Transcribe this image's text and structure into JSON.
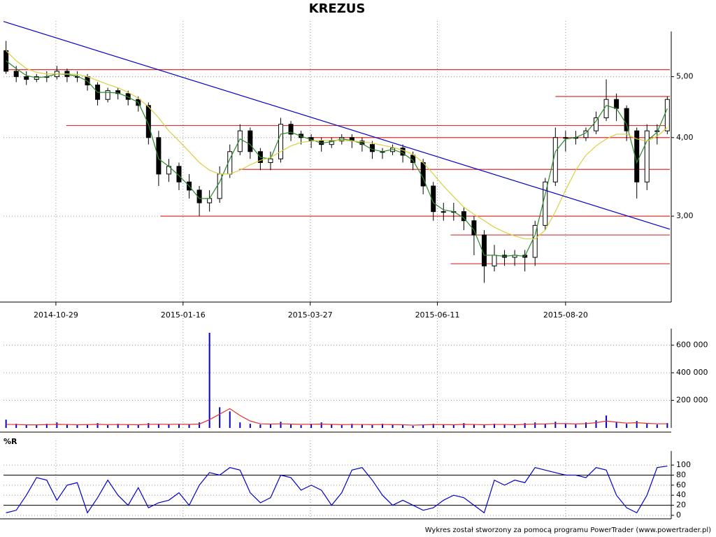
{
  "chart_data": [
    {
      "type": "candlestick",
      "title": "KREZUS",
      "log": true,
      "grid": true,
      "xlim": [
        0,
        262
      ],
      "xticks": [
        {
          "value": 20.6,
          "label": "2014-10-29"
        },
        {
          "value": 70.6,
          "label": "2015-01-16"
        },
        {
          "value": 120.6,
          "label": "2015-03-27"
        },
        {
          "value": 170.6,
          "label": "2015-06-11"
        },
        {
          "value": 221,
          "label": "2015-08-20"
        }
      ],
      "ylim": [
        2.19,
        5.9
      ],
      "yticks": [
        {
          "value": 3,
          "label": "3,00"
        },
        {
          "value": 4,
          "label": "4,00"
        },
        {
          "value": 5,
          "label": "5,00"
        }
      ],
      "x": [
        1,
        5,
        9,
        13,
        17,
        21,
        25,
        29,
        33,
        37,
        41,
        45,
        49,
        53,
        57,
        61,
        65,
        69,
        73,
        77,
        81,
        85,
        89,
        93,
        97,
        101,
        105,
        109,
        113,
        117,
        121,
        125,
        129,
        133,
        137,
        141,
        145,
        149,
        153,
        157,
        161,
        165,
        169,
        173,
        177,
        181,
        185,
        189,
        193,
        197,
        201,
        205,
        209,
        213,
        217,
        221,
        225,
        229,
        233,
        237,
        241,
        245,
        249,
        253,
        257,
        261
      ],
      "open": [
        5.5,
        5.1,
        5.0,
        4.95,
        5.0,
        5.0,
        5.1,
        5.0,
        5.0,
        4.85,
        4.6,
        4.75,
        4.7,
        4.6,
        4.5,
        4.0,
        3.5,
        3.6,
        3.4,
        3.3,
        3.15,
        3.2,
        3.5,
        3.8,
        4.1,
        3.8,
        3.65,
        3.7,
        4.2,
        4.05,
        4.0,
        3.95,
        3.9,
        3.95,
        4.0,
        3.95,
        3.9,
        3.8,
        3.8,
        3.85,
        3.75,
        3.65,
        3.35,
        3.05,
        3.05,
        3.05,
        2.95,
        2.8,
        2.5,
        2.6,
        2.58,
        2.6,
        2.58,
        2.9,
        3.4,
        4.0,
        4.0,
        4.0,
        4.1,
        4.3,
        4.6,
        4.45,
        4.1,
        3.4,
        4.1,
        4.1
      ],
      "high": [
        5.7,
        5.2,
        5.1,
        5.05,
        5.1,
        5.2,
        5.15,
        5.1,
        5.05,
        4.9,
        4.8,
        4.8,
        4.75,
        4.65,
        4.55,
        4.1,
        3.7,
        3.65,
        3.5,
        3.35,
        3.3,
        3.6,
        3.9,
        4.2,
        4.15,
        3.85,
        3.8,
        4.3,
        4.25,
        4.1,
        4.05,
        4.0,
        4.0,
        4.05,
        4.05,
        4.0,
        3.95,
        3.85,
        3.9,
        3.9,
        3.8,
        3.7,
        3.4,
        3.15,
        3.15,
        3.1,
        3.0,
        2.85,
        2.7,
        2.65,
        2.65,
        2.65,
        2.95,
        3.45,
        4.15,
        4.1,
        4.1,
        4.15,
        4.4,
        4.95,
        4.7,
        4.5,
        4.15,
        4.2,
        4.2,
        4.65
      ],
      "low": [
        5.05,
        4.9,
        4.85,
        4.9,
        4.9,
        4.95,
        4.9,
        4.9,
        4.75,
        4.5,
        4.55,
        4.6,
        4.5,
        4.4,
        3.9,
        3.35,
        3.4,
        3.3,
        3.2,
        3.0,
        3.05,
        3.15,
        3.45,
        3.75,
        3.7,
        3.55,
        3.55,
        3.65,
        3.95,
        3.9,
        3.85,
        3.8,
        3.85,
        3.9,
        3.85,
        3.8,
        3.7,
        3.7,
        3.75,
        3.65,
        3.55,
        3.25,
        2.95,
        2.95,
        2.95,
        2.85,
        2.6,
        2.35,
        2.45,
        2.5,
        2.5,
        2.45,
        2.5,
        2.85,
        3.35,
        3.8,
        3.9,
        3.95,
        4.05,
        4.25,
        4.25,
        3.95,
        3.2,
        3.3,
        3.9,
        4.05
      ],
      "close": [
        5.1,
        5.0,
        4.95,
        5.0,
        5.0,
        5.1,
        5.0,
        5.0,
        4.85,
        4.6,
        4.75,
        4.7,
        4.6,
        4.5,
        4.0,
        3.5,
        3.6,
        3.4,
        3.3,
        3.15,
        3.2,
        3.5,
        3.8,
        4.1,
        3.8,
        3.65,
        3.7,
        4.2,
        4.05,
        4.0,
        3.95,
        3.9,
        3.95,
        4.0,
        3.95,
        3.9,
        3.8,
        3.8,
        3.85,
        3.75,
        3.65,
        3.35,
        3.05,
        3.05,
        3.05,
        2.95,
        2.8,
        2.5,
        2.6,
        2.58,
        2.6,
        2.58,
        2.9,
        3.4,
        4.0,
        4.0,
        4.0,
        4.1,
        4.3,
        4.6,
        4.45,
        4.1,
        3.4,
        4.1,
        4.1,
        4.6
      ],
      "series": [
        {
          "color": "#2a8a2a",
          "values": [
            5.3,
            5.15,
            5.02,
            4.98,
            5.0,
            5.05,
            5.04,
            5.01,
            4.92,
            4.72,
            4.72,
            4.71,
            4.64,
            4.55,
            4.2,
            3.7,
            3.6,
            3.48,
            3.35,
            3.2,
            3.2,
            3.4,
            3.7,
            3.98,
            3.9,
            3.72,
            3.7,
            4.05,
            4.08,
            4.02,
            3.97,
            3.92,
            3.94,
            3.98,
            3.96,
            3.91,
            3.83,
            3.8,
            3.83,
            3.78,
            3.68,
            3.45,
            3.15,
            3.07,
            3.05,
            2.98,
            2.85,
            2.6,
            2.6,
            2.59,
            2.6,
            2.59,
            2.8,
            3.25,
            3.8,
            3.98,
            4.0,
            4.07,
            4.25,
            4.5,
            4.45,
            4.2,
            3.65,
            3.95,
            4.08,
            4.45
          ]
        },
        {
          "color": "#d8d040",
          "values": [
            5.5,
            5.3,
            5.15,
            5.08,
            5.05,
            5.05,
            5.05,
            5.04,
            5.0,
            4.93,
            4.86,
            4.8,
            4.72,
            4.62,
            4.48,
            4.3,
            4.1,
            3.95,
            3.8,
            3.65,
            3.55,
            3.5,
            3.5,
            3.55,
            3.62,
            3.68,
            3.72,
            3.8,
            3.88,
            3.93,
            3.95,
            3.96,
            3.96,
            3.96,
            3.95,
            3.94,
            3.92,
            3.89,
            3.86,
            3.82,
            3.76,
            3.65,
            3.5,
            3.35,
            3.22,
            3.1,
            3.02,
            2.95,
            2.88,
            2.83,
            2.79,
            2.76,
            2.76,
            2.85,
            3.05,
            3.3,
            3.55,
            3.75,
            3.88,
            3.98,
            4.05,
            4.05,
            3.98,
            3.95,
            4.02,
            4.15
          ]
        }
      ],
      "trend_line": {
        "color": "#0000cc",
        "x": [
          0,
          262
        ],
        "values": [
          6.12,
          2.86
        ]
      },
      "level_color": "#e03030",
      "levels": [
        {
          "level": 5.13,
          "x": [
            0,
            262
          ]
        },
        {
          "level": 4.65,
          "x": [
            217,
            262
          ]
        },
        {
          "level": 4.18,
          "x": [
            24.7,
            262
          ]
        },
        {
          "level": 4.0,
          "x": [
            119.5,
            262
          ]
        },
        {
          "level": 3.56,
          "x": [
            92.6,
            262
          ]
        },
        {
          "level": 3.0,
          "x": [
            61.8,
            262
          ]
        },
        {
          "level": 2.8,
          "x": [
            175.8,
            262
          ]
        },
        {
          "level": 2.52,
          "x": [
            175.8,
            262
          ]
        }
      ]
    },
    {
      "type": "bar",
      "color": "#0000cc",
      "grid": true,
      "xlim": [
        0,
        262
      ],
      "ylim": [
        0,
        720000
      ],
      "yticks": [
        {
          "value": 200000,
          "label": "200 000"
        },
        {
          "value": 400000,
          "label": "400 000"
        },
        {
          "value": 600000,
          "label": "600 000"
        }
      ],
      "x": [
        1,
        5,
        9,
        13,
        17,
        21,
        25,
        29,
        33,
        37,
        41,
        45,
        49,
        53,
        57,
        61,
        65,
        69,
        73,
        77,
        81,
        85,
        89,
        93,
        97,
        101,
        105,
        109,
        113,
        117,
        121,
        125,
        129,
        133,
        137,
        141,
        145,
        149,
        153,
        157,
        161,
        165,
        169,
        173,
        177,
        181,
        185,
        189,
        193,
        197,
        201,
        205,
        209,
        213,
        217,
        221,
        225,
        229,
        233,
        237,
        241,
        245,
        249,
        253,
        257,
        261
      ],
      "values": [
        60000,
        30000,
        25000,
        20000,
        30000,
        40000,
        25000,
        20000,
        25000,
        35000,
        20000,
        30000,
        25000,
        20000,
        35000,
        30000,
        25000,
        30000,
        25000,
        40000,
        690000,
        150000,
        120000,
        40000,
        30000,
        25000,
        30000,
        45000,
        25000,
        20000,
        30000,
        40000,
        25000,
        20000,
        30000,
        25000,
        20000,
        30000,
        25000,
        20000,
        15000,
        25000,
        30000,
        25000,
        20000,
        35000,
        25000,
        20000,
        30000,
        25000,
        20000,
        35000,
        40000,
        30000,
        45000,
        30000,
        25000,
        40000,
        55000,
        90000,
        40000,
        30000,
        50000,
        30000,
        25000,
        35000
      ],
      "series": [
        {
          "color": "#e03030",
          "values": [
            25000,
            25000,
            22000,
            22000,
            24000,
            26000,
            25000,
            23000,
            24000,
            26000,
            24000,
            25000,
            24000,
            23000,
            26000,
            27000,
            26000,
            27000,
            26000,
            28000,
            60000,
            100000,
            140000,
            90000,
            50000,
            30000,
            28000,
            30000,
            28000,
            26000,
            27000,
            28000,
            26000,
            24000,
            25000,
            25000,
            24000,
            25000,
            24000,
            23000,
            20000,
            22000,
            24000,
            24000,
            23000,
            26000,
            25000,
            23000,
            25000,
            25000,
            23000,
            26000,
            28000,
            29000,
            32000,
            31000,
            29000,
            31000,
            38000,
            50000,
            42000,
            35000,
            38000,
            33000,
            30000,
            30000
          ]
        }
      ]
    },
    {
      "type": "line",
      "title": "%R",
      "grid": true,
      "xlim": [
        0,
        262
      ],
      "ylim": [
        -7,
        128
      ],
      "yticks": [
        0,
        20,
        40,
        60,
        80,
        100
      ],
      "levels": [
        20,
        80
      ],
      "x": [
        1,
        5,
        9,
        13,
        17,
        21,
        25,
        29,
        33,
        37,
        41,
        45,
        49,
        53,
        57,
        61,
        65,
        69,
        73,
        77,
        81,
        85,
        89,
        93,
        97,
        101,
        105,
        109,
        113,
        117,
        121,
        125,
        129,
        133,
        137,
        141,
        145,
        149,
        153,
        157,
        161,
        165,
        169,
        173,
        177,
        181,
        185,
        189,
        193,
        197,
        201,
        205,
        209,
        213,
        217,
        221,
        225,
        229,
        233,
        237,
        241,
        245,
        249,
        253,
        257,
        261
      ],
      "series": [
        {
          "color": "#0000cc",
          "values": [
            5,
            10,
            40,
            75,
            70,
            30,
            60,
            65,
            5,
            35,
            70,
            40,
            20,
            55,
            15,
            25,
            30,
            45,
            20,
            60,
            85,
            80,
            95,
            90,
            45,
            25,
            35,
            80,
            75,
            50,
            60,
            50,
            20,
            45,
            90,
            95,
            70,
            40,
            20,
            30,
            20,
            10,
            15,
            30,
            40,
            35,
            20,
            5,
            70,
            60,
            70,
            65,
            95,
            90,
            85,
            80,
            80,
            75,
            95,
            90,
            40,
            15,
            5,
            40,
            95,
            98
          ]
        }
      ]
    }
  ],
  "footer": "Wykres został stworzony za pomocą programu PowerTrader (www.powertrader.pl)"
}
